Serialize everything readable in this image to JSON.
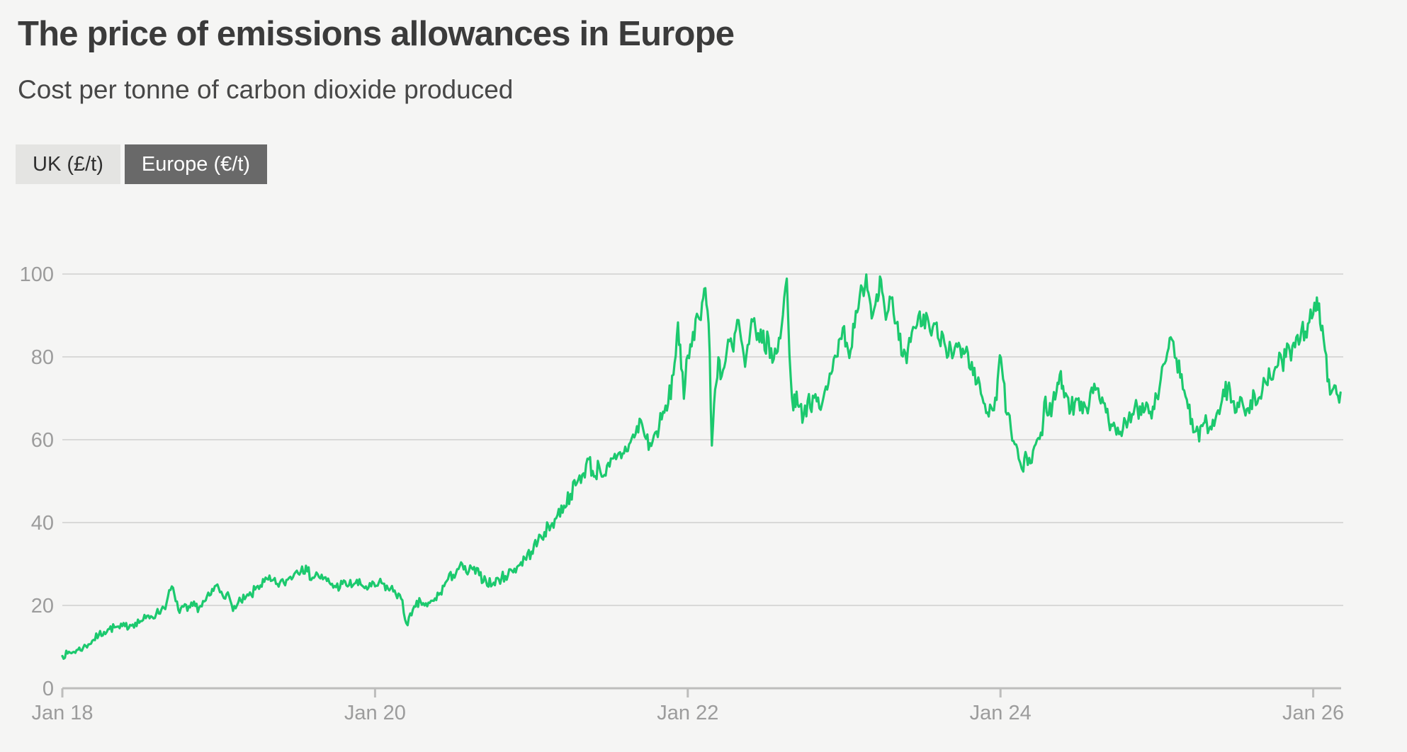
{
  "header": {
    "title": "The price of emissions allowances in Europe",
    "subtitle": "Cost per tonne of carbon dioxide produced"
  },
  "toggles": [
    {
      "label": "UK (£/t)",
      "selected": false
    },
    {
      "label": "Europe (€/t)",
      "selected": true
    }
  ],
  "colors": {
    "background": "#f5f5f4",
    "title_text": "#3b3b3b",
    "subtitle_text": "#474747",
    "axis_label": "#9c9c9c",
    "gridline": "#d9d9d8",
    "axis_line": "#bdbdbc",
    "series_green": "#1cc96e",
    "toggle_inactive_bg": "#e4e4e2",
    "toggle_inactive_text": "#2f2f2f",
    "toggle_active_bg": "#696969",
    "toggle_active_text": "#ffffff"
  },
  "chart_data": {
    "type": "line",
    "title": "The price of emissions allowances in Europe",
    "subtitle": "Cost per tonne of carbon dioxide produced",
    "series_name": "Europe (€/t)",
    "unit": "EUR per tonne of CO2",
    "grid": "horizontal",
    "legend_position": "none",
    "y_axis": {
      "ticks": [
        0,
        20,
        40,
        60,
        80,
        100
      ],
      "range": [
        0,
        100
      ]
    },
    "x_axis": {
      "tick_labels": [
        "Jan 18",
        "Jan 20",
        "Jan 22",
        "Jan 24",
        "Jan 26"
      ],
      "tick_months": [
        0,
        24,
        48,
        72,
        96
      ],
      "month_zero": "Jan 2018",
      "domain_months": [
        0,
        98.1
      ]
    },
    "points_month_value": [
      [
        0,
        7.8
      ],
      [
        0.4,
        8.4
      ],
      [
        0.8,
        8.7
      ],
      [
        1.2,
        9.3
      ],
      [
        1.6,
        9.8
      ],
      [
        2,
        10.6
      ],
      [
        2.4,
        11.7
      ],
      [
        2.8,
        12.9
      ],
      [
        3.2,
        13.6
      ],
      [
        3.6,
        14.3
      ],
      [
        4,
        14.7
      ],
      [
        4.4,
        14.5
      ],
      [
        4.8,
        15.0
      ],
      [
        5.2,
        15.3
      ],
      [
        5.6,
        15.8
      ],
      [
        6,
        16.2
      ],
      [
        6.4,
        16.9
      ],
      [
        6.8,
        17.4
      ],
      [
        7.2,
        17.9
      ],
      [
        7.6,
        19.0
      ],
      [
        8,
        20.6
      ],
      [
        8.4,
        24.6
      ],
      [
        8.7,
        21.0
      ],
      [
        8.9,
        18.9
      ],
      [
        9.3,
        19.7
      ],
      [
        9.6,
        18.7
      ],
      [
        10,
        19.9
      ],
      [
        10.5,
        19.5
      ],
      [
        11,
        21.2
      ],
      [
        11.4,
        22.6
      ],
      [
        11.8,
        24.8
      ],
      [
        12.2,
        23.3
      ],
      [
        12.6,
        22.7
      ],
      [
        13,
        20.1
      ],
      [
        13.3,
        19.3
      ],
      [
        13.7,
        21.1
      ],
      [
        14,
        21.5
      ],
      [
        14.5,
        22.5
      ],
      [
        15,
        24.7
      ],
      [
        15.5,
        25.7
      ],
      [
        16,
        25.9
      ],
      [
        16.4,
        25.2
      ],
      [
        17,
        25.4
      ],
      [
        17.5,
        26.9
      ],
      [
        18,
        28.4
      ],
      [
        18.4,
        29.4
      ],
      [
        18.8,
        28.2
      ],
      [
        19.2,
        26.7
      ],
      [
        19.6,
        27.5
      ],
      [
        20,
        26.3
      ],
      [
        20.5,
        25.5
      ],
      [
        21,
        24.4
      ],
      [
        21.5,
        25.2
      ],
      [
        22,
        24.9
      ],
      [
        22.5,
        25.4
      ],
      [
        23,
        24.8
      ],
      [
        23.5,
        24.3
      ],
      [
        24,
        24.6
      ],
      [
        24.5,
        25.4
      ],
      [
        25,
        24.0
      ],
      [
        25.5,
        23.6
      ],
      [
        26,
        21.6
      ],
      [
        26.4,
        15.7
      ],
      [
        26.8,
        17.6
      ],
      [
        27.1,
        19.7
      ],
      [
        27.5,
        20.9
      ],
      [
        28,
        19.8
      ],
      [
        28.5,
        21.1
      ],
      [
        29,
        23.0
      ],
      [
        29.5,
        25.9
      ],
      [
        30,
        27.4
      ],
      [
        30.5,
        29.5
      ],
      [
        31,
        28.0
      ],
      [
        31.5,
        28.7
      ],
      [
        32,
        27.3
      ],
      [
        32.5,
        26.1
      ],
      [
        33,
        25.0
      ],
      [
        33.5,
        26.3
      ],
      [
        34,
        27.1
      ],
      [
        34.5,
        28.4
      ],
      [
        35,
        29.6
      ],
      [
        35.5,
        31.3
      ],
      [
        36,
        33.0
      ],
      [
        36.5,
        35.5
      ],
      [
        37,
        37.7
      ],
      [
        37.5,
        39.3
      ],
      [
        38,
        41.8
      ],
      [
        38.5,
        44.1
      ],
      [
        39,
        46.9
      ],
      [
        39.5,
        49.6
      ],
      [
        40,
        51.9
      ],
      [
        40.4,
        55.3
      ],
      [
        40.8,
        51.1
      ],
      [
        41.2,
        53.7
      ],
      [
        41.6,
        51.5
      ],
      [
        42,
        53.5
      ],
      [
        42.5,
        55.3
      ],
      [
        43,
        56.7
      ],
      [
        43.5,
        58.9
      ],
      [
        44,
        61.4
      ],
      [
        44.4,
        64.7
      ],
      [
        44.8,
        60.2
      ],
      [
        45.2,
        58.5
      ],
      [
        45.6,
        62.0
      ],
      [
        46,
        64.9
      ],
      [
        46.5,
        68.8
      ],
      [
        46.9,
        75.7
      ],
      [
        47.25,
        88.3
      ],
      [
        47.5,
        77.1
      ],
      [
        47.7,
        69.9
      ],
      [
        48,
        80.3
      ],
      [
        48.4,
        86.0
      ],
      [
        48.8,
        89.7
      ],
      [
        49.1,
        93.1
      ],
      [
        49.35,
        96.6
      ],
      [
        49.6,
        88.1
      ],
      [
        49.85,
        58.6
      ],
      [
        50.1,
        72.1
      ],
      [
        50.35,
        79.9
      ],
      [
        50.6,
        75.3
      ],
      [
        50.9,
        79.0
      ],
      [
        51.2,
        83.8
      ],
      [
        51.5,
        81.3
      ],
      [
        51.8,
        88.9
      ],
      [
        52.1,
        84.1
      ],
      [
        52.4,
        77.6
      ],
      [
        52.7,
        83.1
      ],
      [
        53,
        88.6
      ],
      [
        53.3,
        84.1
      ],
      [
        53.6,
        86.6
      ],
      [
        53.9,
        81.6
      ],
      [
        54.2,
        84.6
      ],
      [
        54.5,
        78.6
      ],
      [
        54.8,
        80.8
      ],
      [
        55,
        84.6
      ],
      [
        55.3,
        90.1
      ],
      [
        55.6,
        98.9
      ],
      [
        55.9,
        75.1
      ],
      [
        56.1,
        67.1
      ],
      [
        56.35,
        71.6
      ],
      [
        56.6,
        68.1
      ],
      [
        56.9,
        66.0
      ],
      [
        57.2,
        69.4
      ],
      [
        57.5,
        66.7
      ],
      [
        57.8,
        71.0
      ],
      [
        58.1,
        67.6
      ],
      [
        58.4,
        70.0
      ],
      [
        58.7,
        72.1
      ],
      [
        59,
        75.9
      ],
      [
        59.3,
        80.3
      ],
      [
        59.6,
        84.1
      ],
      [
        59.9,
        87.0
      ],
      [
        60.2,
        83.4
      ],
      [
        60.5,
        81.6
      ],
      [
        60.8,
        87.1
      ],
      [
        61.1,
        91.8
      ],
      [
        61.4,
        96.6
      ],
      [
        61.7,
        99.9
      ],
      [
        61.95,
        94.1
      ],
      [
        62.2,
        90.1
      ],
      [
        62.5,
        95.1
      ],
      [
        62.75,
        99.4
      ],
      [
        63,
        94.6
      ],
      [
        63.3,
        90.4
      ],
      [
        63.6,
        94.1
      ],
      [
        63.9,
        88.1
      ],
      [
        64.2,
        84.1
      ],
      [
        64.5,
        80.1
      ],
      [
        64.8,
        78.5
      ],
      [
        65.1,
        83.6
      ],
      [
        65.4,
        87.1
      ],
      [
        65.7,
        89.9
      ],
      [
        66,
        87.6
      ],
      [
        66.3,
        90.6
      ],
      [
        66.6,
        86.1
      ],
      [
        66.9,
        88.1
      ],
      [
        67.2,
        84.6
      ],
      [
        67.5,
        86.1
      ],
      [
        67.8,
        82.1
      ],
      [
        68.1,
        83.6
      ],
      [
        68.4,
        80.6
      ],
      [
        68.7,
        82.4
      ],
      [
        69,
        79.9
      ],
      [
        69.3,
        81.1
      ],
      [
        69.6,
        77.4
      ],
      [
        69.9,
        75.6
      ],
      [
        70.2,
        73.6
      ],
      [
        70.5,
        71.1
      ],
      [
        70.8,
        68.6
      ],
      [
        71.1,
        65.6
      ],
      [
        71.4,
        67.1
      ],
      [
        71.7,
        69.6
      ],
      [
        71.95,
        80.4
      ],
      [
        72.2,
        74.6
      ],
      [
        72.5,
        66.1
      ],
      [
        72.8,
        62.6
      ],
      [
        73.1,
        58.9
      ],
      [
        73.4,
        55.4
      ],
      [
        73.75,
        52.3
      ],
      [
        74,
        56.1
      ],
      [
        74.3,
        54.3
      ],
      [
        74.6,
        58.4
      ],
      [
        74.9,
        60.4
      ],
      [
        75.2,
        61.1
      ],
      [
        75.45,
        70.4
      ],
      [
        75.7,
        66.0
      ],
      [
        76,
        68.9
      ],
      [
        76.3,
        71.6
      ],
      [
        76.55,
        75.7
      ],
      [
        76.8,
        73.0
      ],
      [
        77.1,
        70.6
      ],
      [
        77.4,
        67.3
      ],
      [
        77.7,
        68.9
      ],
      [
        78,
        70.0
      ],
      [
        78.3,
        66.4
      ],
      [
        78.6,
        67.6
      ],
      [
        78.9,
        71.4
      ],
      [
        79.2,
        73.5
      ],
      [
        79.5,
        72.4
      ],
      [
        79.8,
        70.2
      ],
      [
        80.1,
        66.6
      ],
      [
        80.4,
        62.3
      ],
      [
        80.7,
        64.1
      ],
      [
        81,
        62.9
      ],
      [
        81.3,
        60.9
      ],
      [
        81.6,
        64.4
      ],
      [
        81.9,
        66.6
      ],
      [
        82.2,
        66.1
      ],
      [
        82.5,
        67.9
      ],
      [
        82.8,
        66.0
      ],
      [
        83.1,
        67.3
      ],
      [
        83.4,
        66.4
      ],
      [
        83.7,
        68.0
      ],
      [
        84,
        70.3
      ],
      [
        84.3,
        74.6
      ],
      [
        84.6,
        78.4
      ],
      [
        84.9,
        82.1
      ],
      [
        85.15,
        84.2
      ],
      [
        85.5,
        79.6
      ],
      [
        85.8,
        75.0
      ],
      [
        86.1,
        71.9
      ],
      [
        86.4,
        67.6
      ],
      [
        86.7,
        65.0
      ],
      [
        87,
        62.1
      ],
      [
        87.25,
        59.6
      ],
      [
        87.5,
        63.3
      ],
      [
        87.75,
        65.9
      ],
      [
        88,
        62.5
      ],
      [
        88.3,
        64.8
      ],
      [
        88.6,
        66.4
      ],
      [
        88.9,
        68.0
      ],
      [
        89.2,
        70.5
      ],
      [
        89.45,
        72.7
      ],
      [
        89.7,
        69.0
      ],
      [
        90,
        66.5
      ],
      [
        90.3,
        67.9
      ],
      [
        90.6,
        68.5
      ],
      [
        90.9,
        67.4
      ],
      [
        91.2,
        69.5
      ],
      [
        91.5,
        70.9
      ],
      [
        91.8,
        70.0
      ],
      [
        92.1,
        72.0
      ],
      [
        92.4,
        73.5
      ],
      [
        92.7,
        75.0
      ],
      [
        93,
        76.5
      ],
      [
        93.3,
        78.0
      ],
      [
        93.6,
        79.0
      ],
      [
        93.9,
        80.0
      ],
      [
        94.2,
        81.5
      ],
      [
        94.5,
        83.4
      ],
      [
        94.8,
        85.3
      ],
      [
        95.1,
        86.5
      ],
      [
        95.4,
        86.1
      ],
      [
        95.7,
        88.4
      ],
      [
        96,
        90.3
      ],
      [
        96.2,
        91.1
      ],
      [
        96.45,
        92.9
      ],
      [
        96.7,
        87.5
      ],
      [
        96.9,
        81.6
      ],
      [
        97.1,
        74.1
      ],
      [
        97.3,
        70.9
      ],
      [
        97.55,
        72.4
      ],
      [
        97.8,
        71.1
      ],
      [
        98.1,
        71.4
      ]
    ]
  }
}
